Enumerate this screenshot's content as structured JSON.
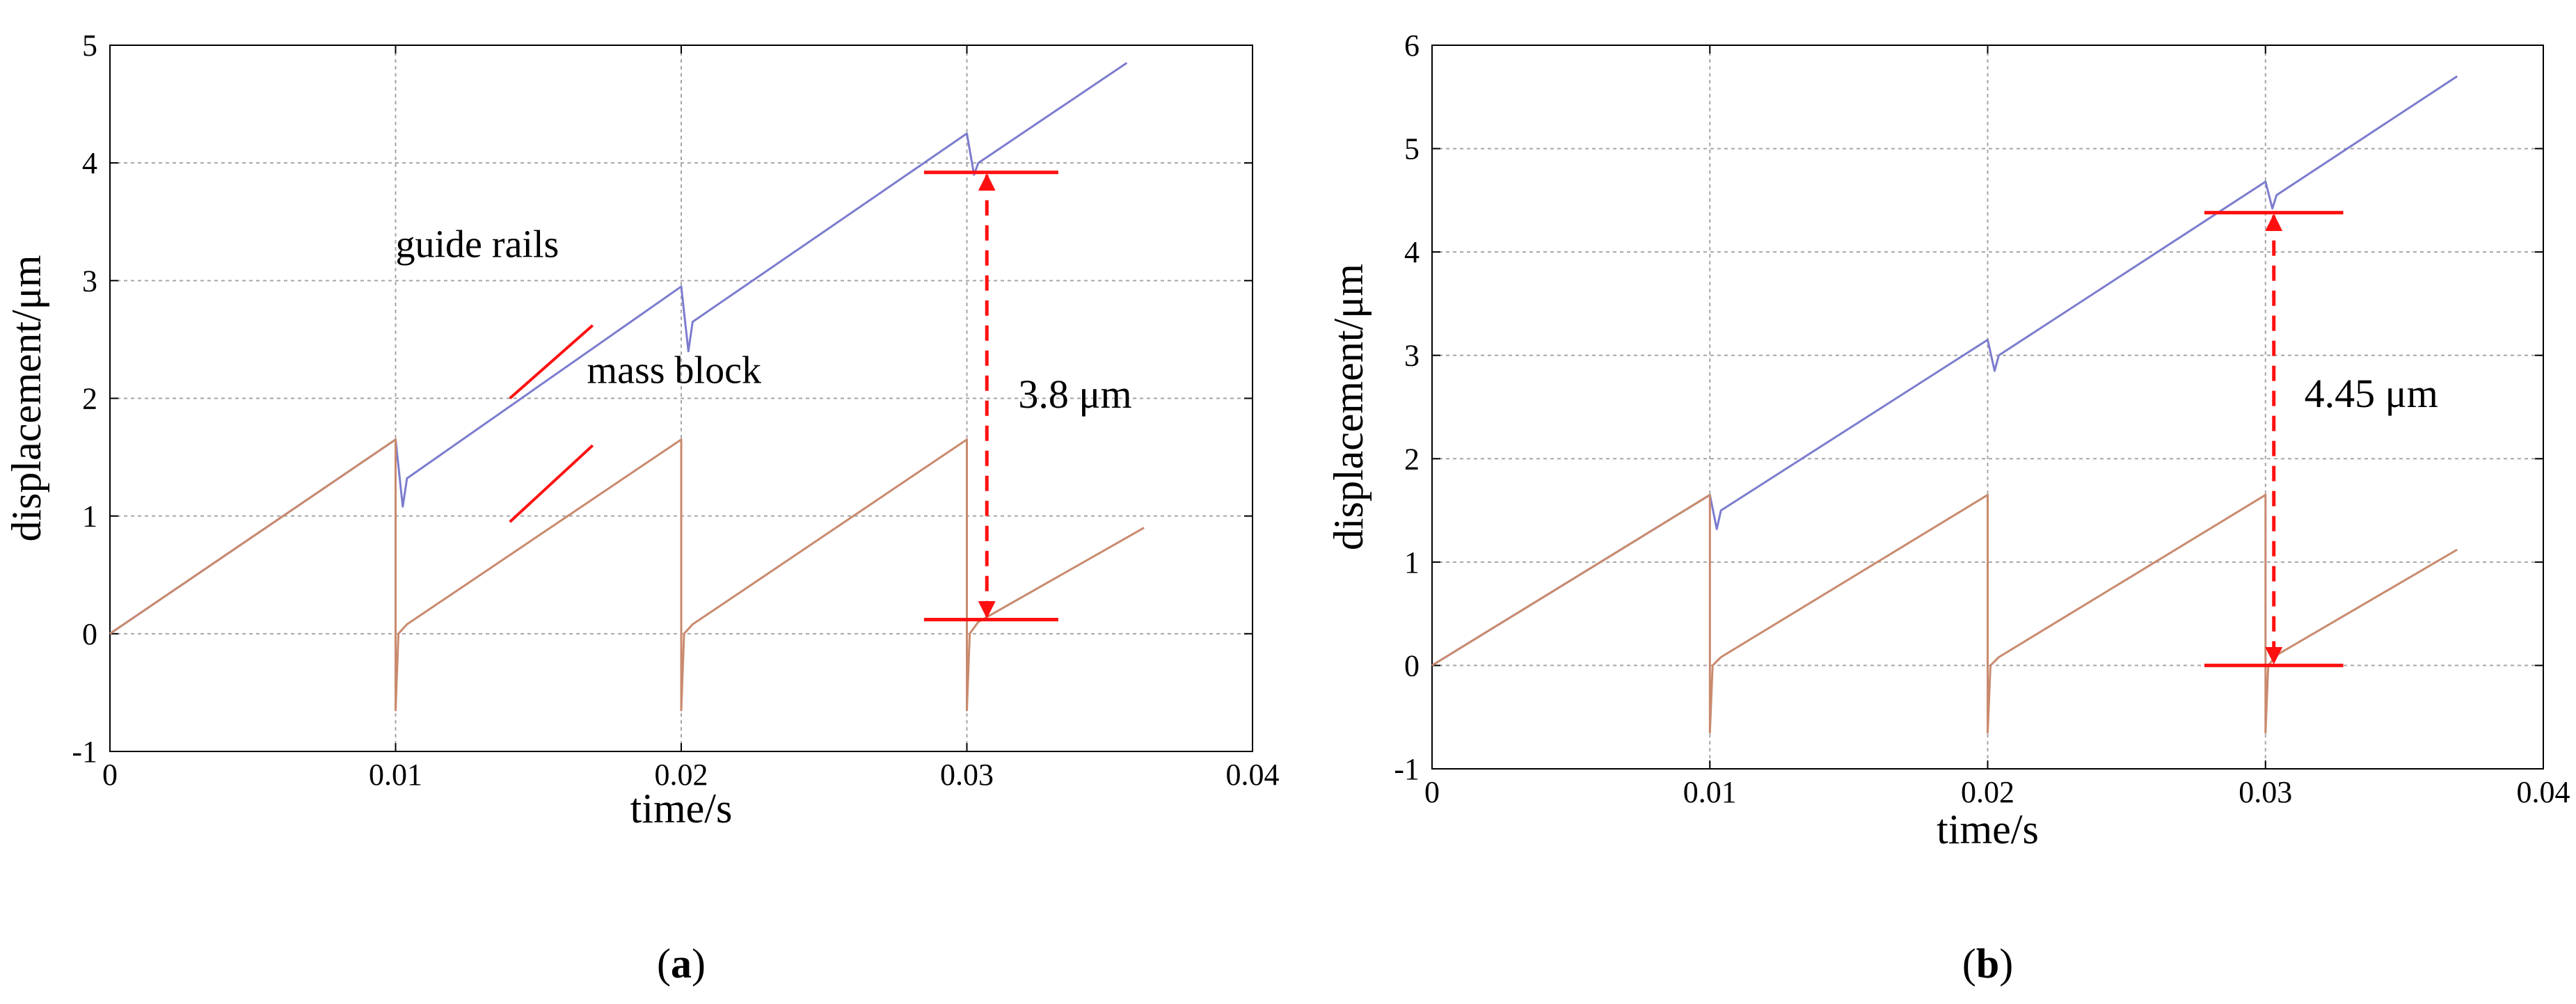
{
  "colors": {
    "guide_rails": "#7c7ccf",
    "mass_block": "#c98a6e",
    "annotation": "#ff1010",
    "grid": "#a6a6a6",
    "axes": "#000000"
  },
  "chart_data": [
    {
      "type": "line",
      "panel_label": "a",
      "xlabel": "time/s",
      "ylabel": "displacement/μm",
      "xlim": [
        0,
        0.04
      ],
      "ylim": [
        -1,
        5
      ],
      "xticks": [
        0,
        0.01,
        0.02,
        0.03,
        0.04
      ],
      "xtick_labels": [
        "0",
        "0.01",
        "0.02",
        "0.03",
        "0.04"
      ],
      "yticks": [
        -1,
        0,
        1,
        2,
        3,
        4,
        5
      ],
      "ytick_labels": [
        "-1",
        "0",
        "1",
        "2",
        "3",
        "4",
        "5"
      ],
      "grid": true,
      "series": [
        {
          "name": "guide rails",
          "x": [
            0,
            0.01,
            0.01025,
            0.0104,
            0.02,
            0.02025,
            0.0204,
            0.03,
            0.03025,
            0.0304,
            0.0356
          ],
          "y": [
            0,
            1.65,
            1.08,
            1.32,
            2.95,
            2.4,
            2.65,
            4.25,
            3.9,
            4.0,
            4.85
          ]
        },
        {
          "name": "mass block",
          "x": [
            0,
            0.01,
            0.01,
            0.0101,
            0.0104,
            0.02,
            0.02,
            0.0201,
            0.0204,
            0.03,
            0.03,
            0.0301,
            0.0304,
            0.0362
          ],
          "y": [
            0,
            1.65,
            -0.65,
            0.0,
            0.08,
            1.65,
            -0.65,
            0.0,
            0.08,
            1.65,
            -0.65,
            0.0,
            0.1,
            0.9
          ]
        }
      ],
      "annotations": {
        "series_labels": [
          {
            "text": "guide rails",
            "x": 0.01,
            "y": 3.2,
            "pointer": [
              [
                0.0169,
                2.62
              ],
              [
                0.014,
                2.0
              ]
            ]
          },
          {
            "text": "mass block",
            "x": 0.0167,
            "y": 2.13,
            "pointer": [
              [
                0.0169,
                1.6
              ],
              [
                0.014,
                0.95
              ]
            ]
          }
        ],
        "difference": {
          "text": "3.8 μm",
          "x_at": 0.0307,
          "y_top": 3.92,
          "y_bottom": 0.12,
          "bar_x_range": [
            0.0285,
            0.0332
          ],
          "label_x": 0.0318,
          "label_y": 1.92
        }
      }
    },
    {
      "type": "line",
      "panel_label": "b",
      "xlabel": "time/s",
      "ylabel": "displacement/μm",
      "xlim": [
        0,
        0.04
      ],
      "ylim": [
        -1,
        6
      ],
      "xticks": [
        0,
        0.01,
        0.02,
        0.03,
        0.04
      ],
      "xtick_labels": [
        "0",
        "0.01",
        "0.02",
        "0.03",
        "0.04"
      ],
      "yticks": [
        -1,
        0,
        1,
        2,
        3,
        4,
        5,
        6
      ],
      "ytick_labels": [
        "-1",
        "0",
        "1",
        "2",
        "3",
        "4",
        "5",
        "6"
      ],
      "grid": true,
      "series": [
        {
          "name": "guide rails",
          "x": [
            0,
            0.01,
            0.01025,
            0.0104,
            0.02,
            0.02025,
            0.0204,
            0.03,
            0.03025,
            0.0304,
            0.0369
          ],
          "y": [
            0,
            1.65,
            1.32,
            1.5,
            3.15,
            2.85,
            3.0,
            4.68,
            4.42,
            4.55,
            5.7
          ]
        },
        {
          "name": "mass block",
          "x": [
            0,
            0.01,
            0.01,
            0.0101,
            0.0104,
            0.02,
            0.02,
            0.0201,
            0.0204,
            0.03,
            0.03,
            0.0301,
            0.0304,
            0.0369
          ],
          "y": [
            0,
            1.65,
            -0.65,
            0.0,
            0.08,
            1.65,
            -0.65,
            0.0,
            0.08,
            1.65,
            -0.65,
            0.0,
            0.1,
            1.12
          ]
        }
      ],
      "annotations": {
        "difference": {
          "text": "4.45 μm",
          "x_at": 0.0303,
          "y_top": 4.38,
          "y_bottom": 0.0,
          "bar_x_range": [
            0.0278,
            0.0328
          ],
          "label_x": 0.0314,
          "label_y": 2.5
        }
      }
    }
  ]
}
